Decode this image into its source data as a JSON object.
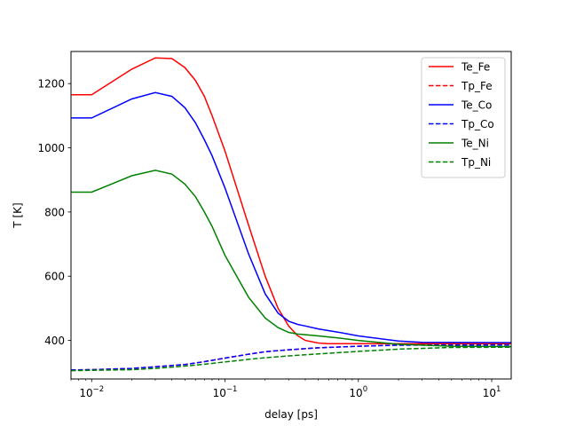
{
  "chart_data": {
    "type": "line",
    "xlabel": "delay [ps]",
    "ylabel": "T [K]",
    "xscale": "log",
    "xlim": [
      0.007,
      14
    ],
    "ylim": [
      280,
      1300
    ],
    "grid": false,
    "legend_position": "upper-right",
    "x_ticks": [
      {
        "value": 0.01,
        "base": "10",
        "exp": "−2"
      },
      {
        "value": 0.1,
        "base": "10",
        "exp": "−1"
      },
      {
        "value": 1,
        "base": "10",
        "exp": "0"
      },
      {
        "value": 10,
        "base": "10",
        "exp": "1"
      }
    ],
    "y_ticks": [
      400,
      600,
      800,
      1000,
      1200
    ],
    "series": [
      {
        "name": "Te_Fe",
        "color": "#ff0000",
        "dash": "solid",
        "x": [
          0.007,
          0.01,
          0.02,
          0.03,
          0.04,
          0.05,
          0.06,
          0.07,
          0.08,
          0.1,
          0.15,
          0.2,
          0.25,
          0.3,
          0.35,
          0.4,
          0.5,
          0.6,
          0.8,
          1,
          2,
          5,
          14
        ],
        "y": [
          1165,
          1165,
          1245,
          1280,
          1278,
          1250,
          1210,
          1160,
          1100,
          990,
          760,
          600,
          500,
          445,
          415,
          400,
          392,
          390,
          390,
          390,
          390,
          390,
          390
        ]
      },
      {
        "name": "Tp_Fe",
        "color": "#ff0000",
        "dash": "dashed",
        "x": [
          0.007,
          0.01,
          0.02,
          0.03,
          0.05,
          0.07,
          0.1,
          0.15,
          0.2,
          0.3,
          0.5,
          1,
          2,
          5,
          14
        ],
        "y": [
          308,
          309,
          313,
          318,
          325,
          334,
          345,
          357,
          365,
          371,
          377,
          382,
          386,
          388,
          388
        ]
      },
      {
        "name": "Te_Co",
        "color": "#0000ff",
        "dash": "solid",
        "x": [
          0.007,
          0.01,
          0.02,
          0.03,
          0.04,
          0.05,
          0.06,
          0.07,
          0.08,
          0.1,
          0.15,
          0.2,
          0.25,
          0.3,
          0.35,
          0.4,
          0.5,
          0.7,
          1,
          2,
          3,
          14
        ],
        "y": [
          1093,
          1093,
          1152,
          1172,
          1160,
          1125,
          1078,
          1025,
          975,
          875,
          670,
          545,
          485,
          460,
          450,
          445,
          436,
          426,
          414,
          398,
          394,
          393
        ]
      },
      {
        "name": "Tp_Co",
        "color": "#0000ff",
        "dash": "dashed",
        "x": [
          0.007,
          0.01,
          0.02,
          0.03,
          0.05,
          0.07,
          0.1,
          0.15,
          0.2,
          0.3,
          0.5,
          1,
          2,
          5,
          14
        ],
        "y": [
          308,
          309,
          313,
          318,
          325,
          334,
          345,
          357,
          365,
          371,
          377,
          382,
          385,
          386,
          386
        ]
      },
      {
        "name": "Te_Ni",
        "color": "#008000",
        "dash": "solid",
        "x": [
          0.007,
          0.01,
          0.02,
          0.03,
          0.04,
          0.05,
          0.06,
          0.07,
          0.08,
          0.1,
          0.15,
          0.2,
          0.25,
          0.3,
          0.35,
          0.4,
          0.5,
          0.7,
          1,
          2,
          5,
          14
        ],
        "y": [
          862,
          862,
          913,
          930,
          918,
          887,
          848,
          800,
          755,
          665,
          535,
          470,
          440,
          425,
          420,
          418,
          414,
          408,
          400,
          388,
          382,
          381
        ]
      },
      {
        "name": "Tp_Ni",
        "color": "#008000",
        "dash": "dashed",
        "x": [
          0.007,
          0.01,
          0.02,
          0.03,
          0.05,
          0.07,
          0.1,
          0.15,
          0.2,
          0.3,
          0.5,
          1,
          2,
          5,
          14
        ],
        "y": [
          306,
          307,
          309,
          313,
          320,
          326,
          333,
          341,
          346,
          352,
          358,
          366,
          373,
          378,
          379
        ]
      }
    ]
  }
}
